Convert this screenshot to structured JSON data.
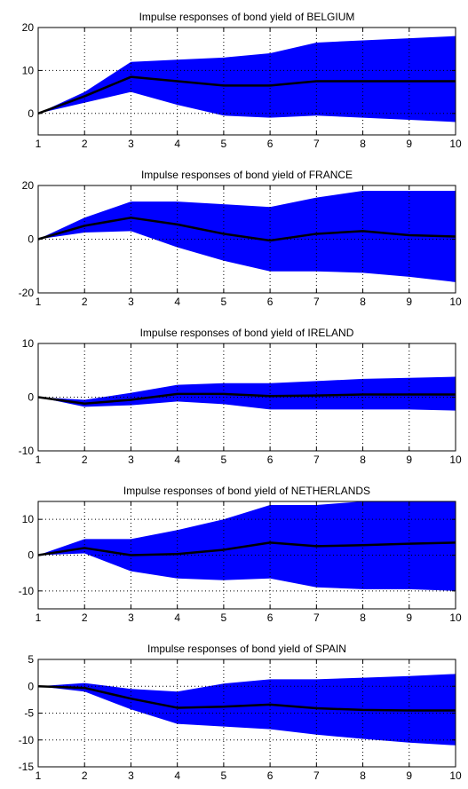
{
  "colors": {
    "band": "#0000FF",
    "line": "#000000",
    "axes": "#000000",
    "grid": "#000000",
    "background": "#FFFFFF"
  },
  "chart_data": [
    {
      "type": "area",
      "title": "Impulse responses of bond yield of BELGIUM",
      "x": [
        1,
        2,
        3,
        4,
        5,
        6,
        7,
        8,
        9,
        10
      ],
      "xlim": [
        1,
        10
      ],
      "ylim": [
        -5,
        20
      ],
      "yticks": [
        0,
        10,
        20
      ],
      "grid": true,
      "series": [
        {
          "role": "upper",
          "values": [
            0,
            5,
            12,
            12.5,
            13,
            14,
            16.5,
            17,
            17.5,
            18
          ]
        },
        {
          "role": "median",
          "values": [
            0,
            4,
            8.5,
            7.5,
            6.5,
            6.5,
            7.5,
            7.5,
            7.5,
            7.5
          ]
        },
        {
          "role": "lower",
          "values": [
            0,
            2.5,
            5,
            2,
            -0.5,
            -1,
            -0.5,
            -1,
            -1.5,
            -2
          ]
        }
      ]
    },
    {
      "type": "area",
      "title": "Impulse responses of bond yield of FRANCE",
      "x": [
        1,
        2,
        3,
        4,
        5,
        6,
        7,
        8,
        9,
        10
      ],
      "xlim": [
        1,
        10
      ],
      "ylim": [
        -20,
        20
      ],
      "yticks": [
        -20,
        0,
        20
      ],
      "grid": true,
      "series": [
        {
          "role": "upper",
          "values": [
            0,
            8,
            14,
            14,
            13,
            12,
            15.5,
            18,
            18,
            18
          ]
        },
        {
          "role": "median",
          "values": [
            0,
            5,
            8,
            5.5,
            2,
            -0.5,
            2,
            3,
            1.5,
            1
          ]
        },
        {
          "role": "lower",
          "values": [
            0,
            2.5,
            3,
            -3,
            -8,
            -12,
            -12,
            -12.5,
            -14,
            -16
          ]
        }
      ]
    },
    {
      "type": "area",
      "title": "Impulse responses of bond yield of IRELAND",
      "x": [
        1,
        2,
        3,
        4,
        5,
        6,
        7,
        8,
        9,
        10
      ],
      "xlim": [
        1,
        10
      ],
      "ylim": [
        -10,
        10
      ],
      "yticks": [
        -10,
        0,
        10
      ],
      "grid": true,
      "series": [
        {
          "role": "upper",
          "values": [
            0,
            -0.5,
            0.8,
            2.3,
            2.6,
            2.6,
            3,
            3.4,
            3.6,
            3.8
          ]
        },
        {
          "role": "median",
          "values": [
            0,
            -1.2,
            -0.5,
            0.6,
            0.6,
            0.2,
            0.3,
            0.5,
            0.5,
            0.5
          ]
        },
        {
          "role": "lower",
          "values": [
            0,
            -1.8,
            -1.5,
            -0.8,
            -1.3,
            -2.3,
            -2.3,
            -2.3,
            -2.3,
            -2.5
          ]
        }
      ]
    },
    {
      "type": "area",
      "title": "Impulse responses of bond yield of NETHERLANDS",
      "x": [
        1,
        2,
        3,
        4,
        5,
        6,
        7,
        8,
        9,
        10
      ],
      "xlim": [
        1,
        10
      ],
      "ylim": [
        -15,
        15
      ],
      "yticks": [
        -10,
        0,
        10
      ],
      "grid": true,
      "series": [
        {
          "role": "upper",
          "values": [
            0,
            4.5,
            4.5,
            7,
            10,
            14,
            14,
            15,
            15,
            15
          ]
        },
        {
          "role": "median",
          "values": [
            0,
            2,
            0,
            0.3,
            1.5,
            3.5,
            2.5,
            2.8,
            3.2,
            3.5
          ]
        },
        {
          "role": "lower",
          "values": [
            0,
            0.5,
            -4.5,
            -6.5,
            -7,
            -6.5,
            -9,
            -9.5,
            -9.5,
            -10
          ]
        }
      ]
    },
    {
      "type": "area",
      "title": "Impulse responses of bond yield of SPAIN",
      "x": [
        1,
        2,
        3,
        4,
        5,
        6,
        7,
        8,
        9,
        10
      ],
      "xlim": [
        1,
        10
      ],
      "ylim": [
        -15,
        5
      ],
      "yticks": [
        -15,
        -10,
        -5,
        0,
        5
      ],
      "grid": true,
      "series": [
        {
          "role": "upper",
          "values": [
            0,
            0.6,
            -0.5,
            -1,
            0.5,
            1.3,
            1.3,
            1.6,
            1.9,
            2.3
          ]
        },
        {
          "role": "median",
          "values": [
            0,
            -0.3,
            -2.3,
            -4,
            -3.8,
            -3.4,
            -4.1,
            -4.4,
            -4.5,
            -4.5
          ]
        },
        {
          "role": "lower",
          "values": [
            0,
            -1,
            -4.3,
            -7,
            -7.5,
            -8,
            -9,
            -9.8,
            -10.5,
            -11
          ]
        }
      ]
    }
  ]
}
